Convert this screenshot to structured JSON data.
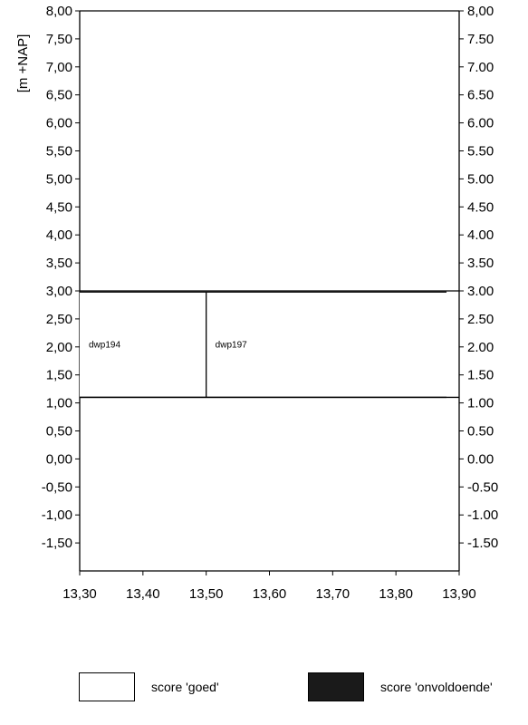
{
  "chart_data": {
    "type": "bar",
    "ylabel": "[m +NAP]",
    "xlim": [
      13.3,
      13.9
    ],
    "ylim": [
      -2.0,
      8.0
    ],
    "x_ticks": [
      13.3,
      13.4,
      13.5,
      13.6,
      13.7,
      13.8,
      13.9
    ],
    "x_tick_labels": [
      "13,30",
      "13,40",
      "13,50",
      "13,60",
      "13,70",
      "13,80",
      "13,90"
    ],
    "y_ticks": [
      8.0,
      7.5,
      7.0,
      6.5,
      6.0,
      5.5,
      5.0,
      4.5,
      4.0,
      3.5,
      3.0,
      2.5,
      2.0,
      1.5,
      1.0,
      0.5,
      0.0,
      -0.5,
      -1.0,
      -1.5
    ],
    "y_tick_labels_left": [
      "8,00",
      "7,50",
      "7,00",
      "6,50",
      "6,00",
      "5,50",
      "5,00",
      "4,50",
      "4,00",
      "3,50",
      "3,00",
      "2,50",
      "2,00",
      "1,50",
      "1,00",
      "0,50",
      "0,00",
      "-0,50",
      "-1,00",
      "-1,50"
    ],
    "y_tick_labels_right": [
      "8,00",
      "7.50",
      "7.00",
      "6.50",
      "6.00",
      "5.50",
      "5.00",
      "4.50",
      "4.00",
      "3.50",
      "3.00",
      "2.50",
      "2.00",
      "1.50",
      "1.00",
      "0.50",
      "0.00",
      "-0.50",
      "-1.00",
      "-1.50"
    ],
    "sections": [
      {
        "label": "dwp194",
        "x_start": 13.3,
        "x_end": 13.5,
        "y_bottom": 1.1,
        "y_top": 2.98,
        "score": "goed"
      },
      {
        "label": "dwp197",
        "x_start": 13.5,
        "x_end": 13.88,
        "y_bottom": 1.1,
        "y_top": 2.98,
        "score": "goed"
      }
    ],
    "legend": [
      {
        "label": "score 'goed'",
        "fill": "#ffffff"
      },
      {
        "label": "score 'onvoldoende'",
        "fill": "#1a1a1a"
      }
    ],
    "grid": false
  }
}
